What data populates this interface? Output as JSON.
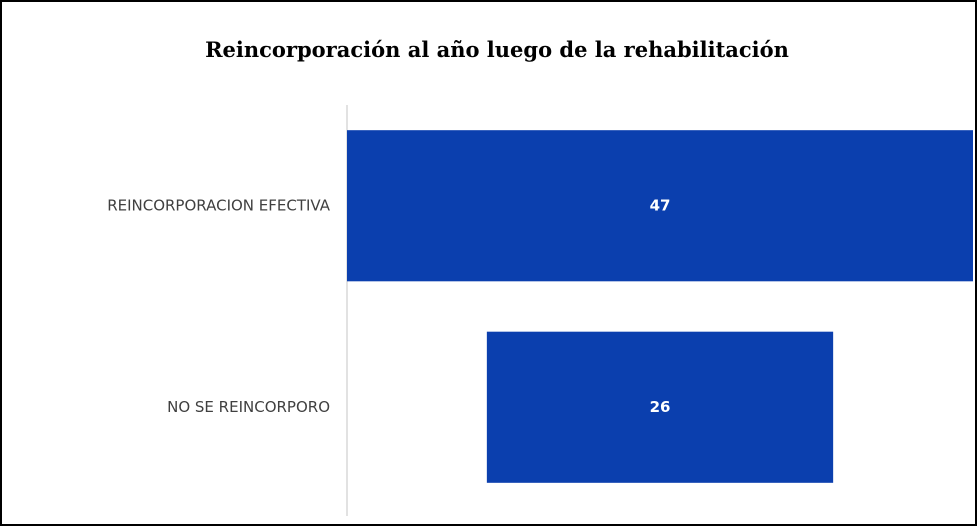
{
  "chart_data": {
    "type": "funnel",
    "title": "Reincorporación al año luego de la rehabilitación",
    "categories": [
      "REINCORPORACION EFECTIVA",
      "NO SE REINCORPORO"
    ],
    "values": [
      47,
      26
    ],
    "color": "#0b3fae"
  }
}
